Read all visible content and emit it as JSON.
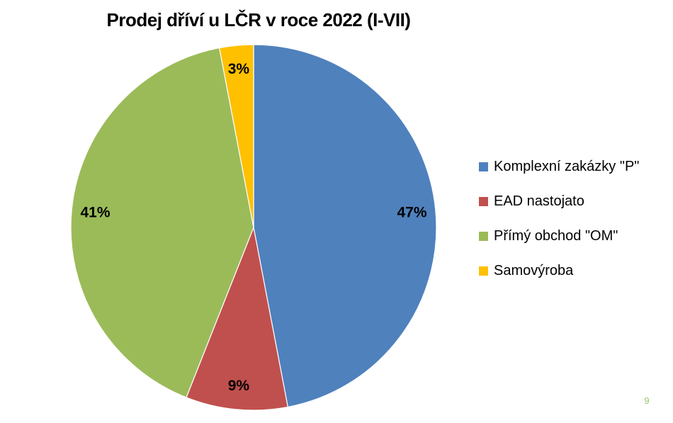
{
  "page_number": "9",
  "colors": {
    "background": "#FFFFFF",
    "title_text": "#000000",
    "data_label_text": "#000000",
    "page_number_text": "#9CC368",
    "slice_border": "#FFFFFF"
  },
  "chart_data": {
    "type": "pie",
    "title": "Prodej dříví u LČR v roce 2022 (I-VII)",
    "start_angle_deg": 0,
    "direction": "clockwise",
    "legend_position": "right",
    "data_labels": "percent-inside",
    "slices": [
      {
        "label": "Komplexní zakázky \"P\"",
        "value": 47,
        "pct_label": "47%",
        "color": "#4F81BD"
      },
      {
        "label": "EAD nastojato",
        "value": 9,
        "pct_label": "9%",
        "color": "#C0504D"
      },
      {
        "label": "Přímý obchod \"OM\"",
        "value": 41,
        "pct_label": "41%",
        "color": "#9BBB59"
      },
      {
        "label": "Samovýroba",
        "value": 3,
        "pct_label": "3%",
        "color": "#FFC000"
      }
    ]
  }
}
